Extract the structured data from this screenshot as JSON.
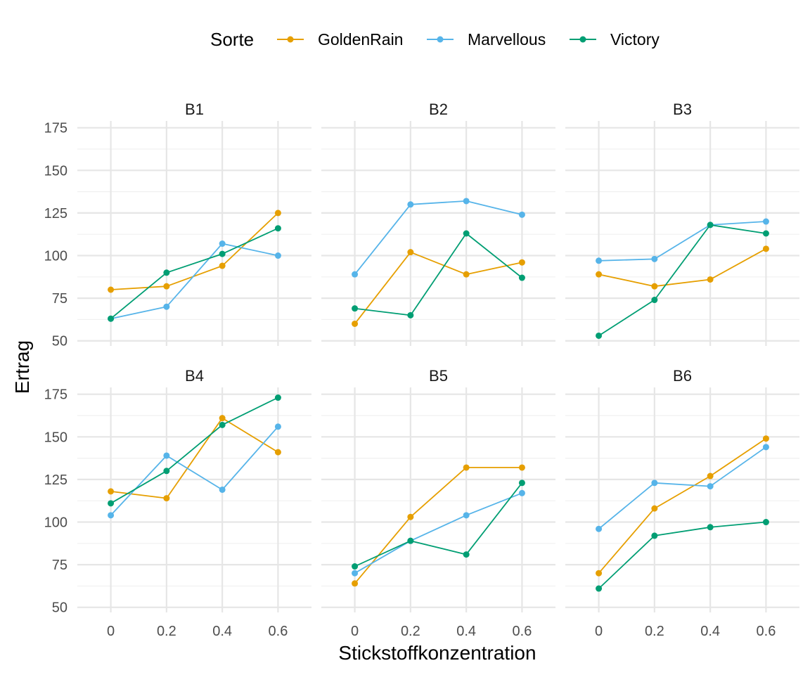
{
  "chart_data": {
    "type": "line",
    "xlabel": "Stickstoffkonzentration",
    "ylabel": "Ertrag",
    "x": [
      0,
      0.2,
      0.4,
      0.6
    ],
    "x_tick_labels": [
      "0",
      "0.2",
      "0.4",
      "0.6"
    ],
    "xlim": [
      -0.12,
      0.72
    ],
    "ylim": [
      47,
      179
    ],
    "y_ticks": [
      50,
      75,
      100,
      125,
      150,
      175
    ],
    "y_tick_labels": [
      "50",
      "75",
      "100",
      "125",
      "150",
      "175"
    ],
    "grid": true,
    "legend": {
      "title": "Sorte",
      "position": "top",
      "entries": [
        "GoldenRain",
        "Marvellous",
        "Victory"
      ]
    },
    "colors": {
      "GoldenRain": "#E69F00",
      "Marvellous": "#56B4E9",
      "Victory": "#009E73"
    },
    "panels": [
      {
        "title": "B1",
        "series": [
          {
            "name": "GoldenRain",
            "values": [
              80,
              82,
              94,
              125
            ]
          },
          {
            "name": "Marvellous",
            "values": [
              63,
              70,
              107,
              100
            ]
          },
          {
            "name": "Victory",
            "values": [
              63,
              90,
              101,
              116
            ]
          }
        ]
      },
      {
        "title": "B2",
        "series": [
          {
            "name": "GoldenRain",
            "values": [
              60,
              102,
              89,
              96
            ]
          },
          {
            "name": "Marvellous",
            "values": [
              89,
              130,
              132,
              124
            ]
          },
          {
            "name": "Victory",
            "values": [
              69,
              65,
              113,
              87
            ]
          }
        ]
      },
      {
        "title": "B3",
        "series": [
          {
            "name": "GoldenRain",
            "values": [
              89,
              82,
              86,
              104
            ]
          },
          {
            "name": "Marvellous",
            "values": [
              97,
              98,
              118,
              120
            ]
          },
          {
            "name": "Victory",
            "values": [
              53,
              74,
              118,
              113
            ]
          }
        ]
      },
      {
        "title": "B4",
        "series": [
          {
            "name": "GoldenRain",
            "values": [
              118,
              114,
              161,
              141
            ]
          },
          {
            "name": "Marvellous",
            "values": [
              104,
              139,
              119,
              156
            ]
          },
          {
            "name": "Victory",
            "values": [
              111,
              130,
              157,
              173
            ]
          }
        ]
      },
      {
        "title": "B5",
        "series": [
          {
            "name": "GoldenRain",
            "values": [
              64,
              103,
              132,
              132
            ]
          },
          {
            "name": "Marvellous",
            "values": [
              70,
              89,
              104,
              117
            ]
          },
          {
            "name": "Victory",
            "values": [
              74,
              89,
              81,
              123
            ]
          }
        ]
      },
      {
        "title": "B6",
        "series": [
          {
            "name": "GoldenRain",
            "values": [
              70,
              108,
              127,
              149
            ]
          },
          {
            "name": "Marvellous",
            "values": [
              96,
              123,
              121,
              144
            ]
          },
          {
            "name": "Victory",
            "values": [
              61,
              92,
              97,
              100
            ]
          }
        ]
      }
    ]
  }
}
